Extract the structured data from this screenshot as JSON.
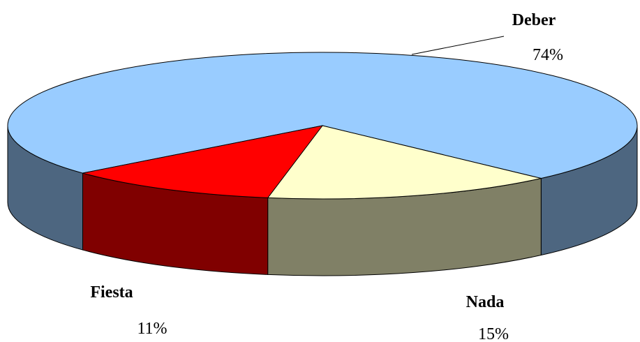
{
  "chart_data": {
    "type": "pie",
    "style": "3d",
    "categories": [
      "Deber",
      "Nada",
      "Fiesta"
    ],
    "values": [
      74,
      15,
      11
    ],
    "value_labels": [
      "74%",
      "15%",
      "11%"
    ],
    "colors": [
      "#99ccff",
      "#ffffcc",
      "#ff0000"
    ],
    "side_colors": [
      "#4d6680",
      "#808066",
      "#800000"
    ]
  }
}
